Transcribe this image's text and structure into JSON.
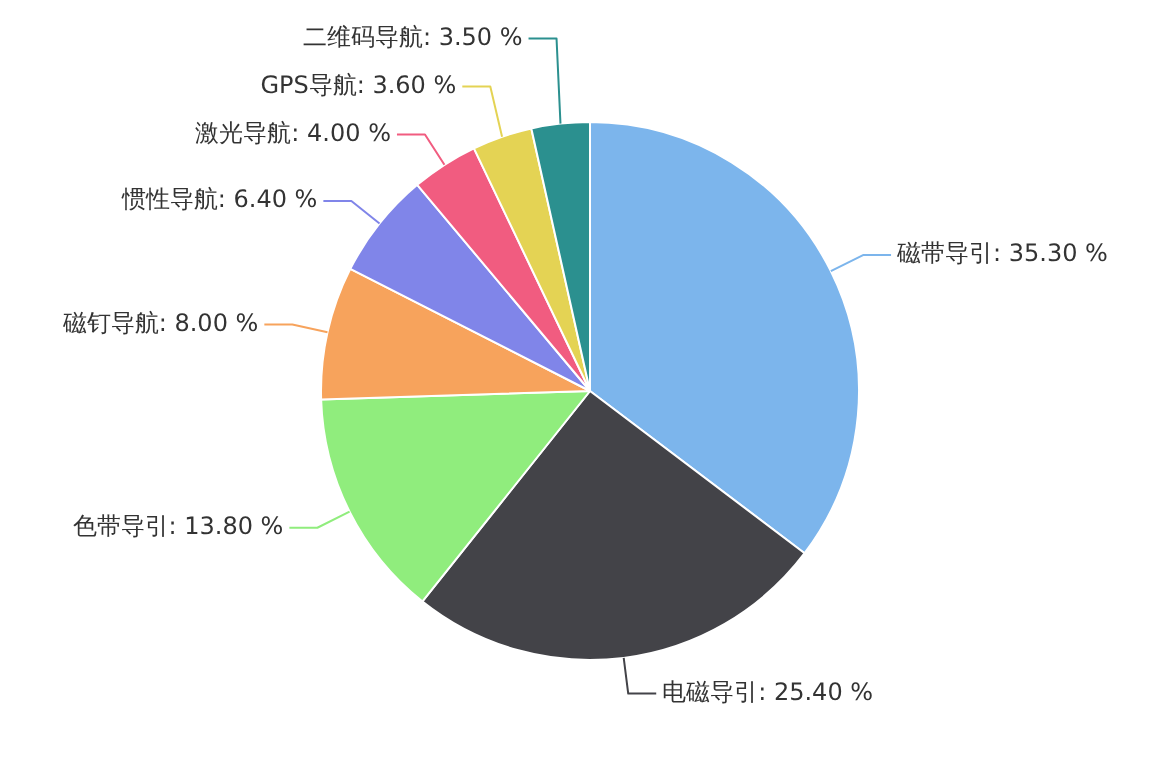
{
  "chart_data": {
    "type": "pie",
    "categories": [
      "磁带导引",
      "电磁导引",
      "色带导引",
      "磁钉导航",
      "惯性导航",
      "激光导航",
      "GPS导航",
      "二维码导航"
    ],
    "values": [
      35.3,
      25.4,
      13.8,
      8.0,
      6.4,
      4.0,
      3.6,
      3.5
    ],
    "value_labels": [
      "35.30 %",
      "25.40 %",
      "13.80 %",
      "8.00 %",
      "6.40 %",
      "4.00 %",
      "3.60 %",
      "3.50 %"
    ],
    "colors": [
      "#7cb5ec",
      "#434348",
      "#90ed7d",
      "#f7a35c",
      "#8085e9",
      "#f15c80",
      "#e4d354",
      "#2b908f"
    ],
    "legend": false
  }
}
